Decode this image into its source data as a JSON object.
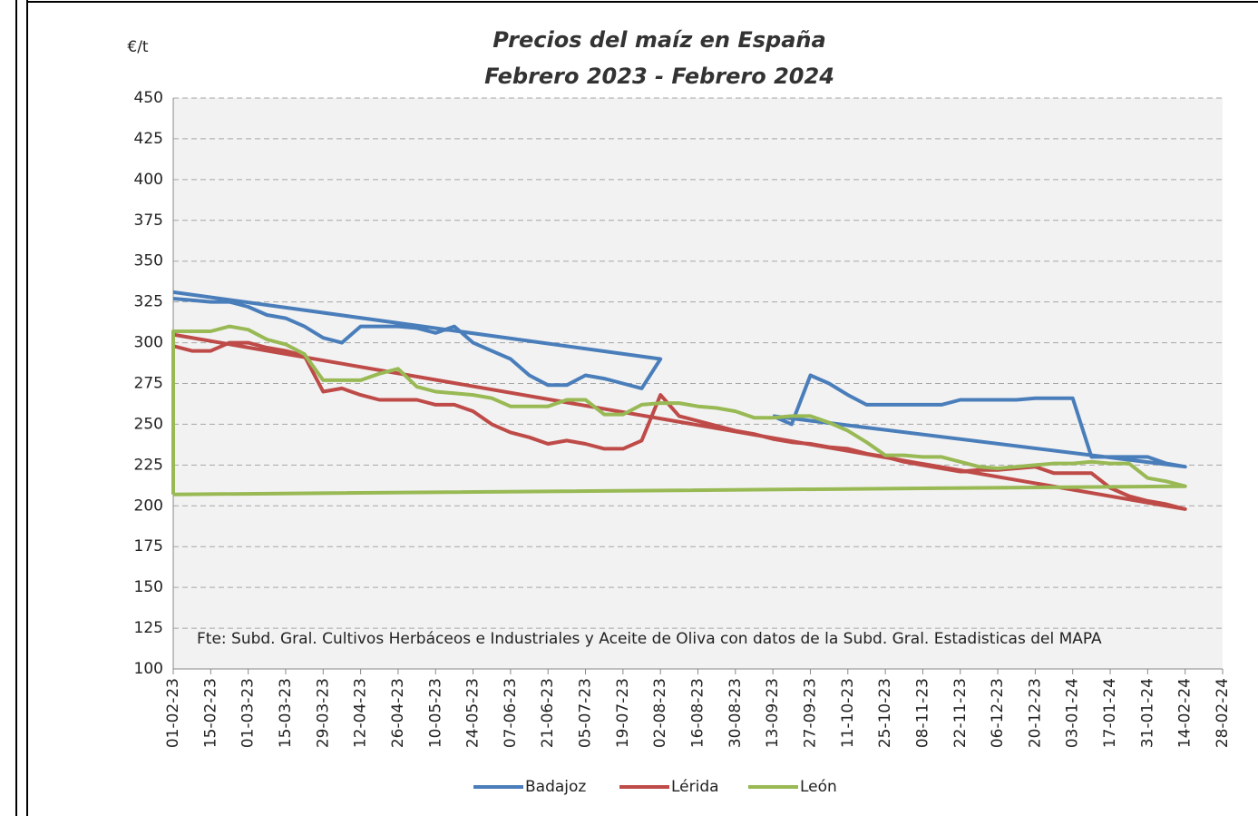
{
  "chart_data": {
    "type": "line",
    "title": "Precios del maíz en España",
    "subtitle": "Febrero 2023 - Febrero 2024",
    "ylabel": "€/t",
    "annotation": "Fte: Subd. Gral. Cultivos Herbáceos e Industriales y Aceite de Oliva con datos de la Subd. Gral. Estadisticas del MAPA",
    "xlim": [
      "01-02-23",
      "28-02-24"
    ],
    "xticks": [
      "01-02-23",
      "15-02-23",
      "01-03-23",
      "15-03-23",
      "29-03-23",
      "12-04-23",
      "26-04-23",
      "10-05-23",
      "24-05-23",
      "07-06-23",
      "21-06-23",
      "05-07-23",
      "19-07-23",
      "02-08-23",
      "16-08-23",
      "30-08-23",
      "13-09-23",
      "27-09-23",
      "11-10-23",
      "25-10-23",
      "08-11-23",
      "22-11-23",
      "06-12-23",
      "20-12-23",
      "03-01-24",
      "17-01-24",
      "31-01-24",
      "14-02-24",
      "28-02-24"
    ],
    "ylim": [
      100,
      450
    ],
    "yticks": [
      100,
      125,
      150,
      175,
      200,
      225,
      250,
      275,
      300,
      325,
      350,
      375,
      400,
      425,
      450
    ],
    "grid": true,
    "legend": "bottom",
    "series": [
      {
        "name": "Badajoz",
        "color": "#4a7ebb",
        "x": [
          "01-02-23",
          "08-02-23",
          "15-02-23",
          "22-02-23",
          "01-03-23",
          "08-03-23",
          "15-03-23",
          "22-03-23",
          "29-03-23",
          "05-04-23",
          "12-04-23",
          "19-04-23",
          "26-04-23",
          "03-05-23",
          "10-05-23",
          "17-05-23",
          "24-05-23",
          "31-05-23",
          "07-06-23",
          "14-06-23",
          "21-06-23",
          "28-06-23",
          "05-07-23",
          "12-07-23",
          "19-07-23",
          "26-07-23",
          "02-08-23",
          "01-02-23",
          null,
          "13-09-23",
          "20-09-23",
          "27-09-23",
          "04-10-23",
          "11-10-23",
          "18-10-23",
          "25-10-23",
          "01-11-23",
          "08-11-23",
          "15-11-23",
          "22-11-23",
          "29-11-23",
          "06-12-23",
          "13-12-23",
          "20-12-23",
          "27-12-23",
          "03-01-24",
          "10-01-24",
          "17-01-24",
          "24-01-24",
          "31-01-24",
          "07-02-24",
          "14-02-24",
          "13-09-23"
        ],
        "values": [
          327,
          326,
          325,
          325,
          322,
          317,
          315,
          310,
          303,
          300,
          310,
          310,
          310,
          309,
          306,
          310,
          300,
          295,
          290,
          280,
          274,
          274,
          280,
          278,
          275,
          272,
          290,
          331,
          null,
          255,
          250,
          280,
          275,
          268,
          262,
          262,
          262,
          262,
          262,
          265,
          265,
          265,
          265,
          266,
          266,
          266,
          230,
          230,
          230,
          230,
          226,
          224,
          255
        ]
      },
      {
        "name": "Lérida",
        "color": "#be4b48",
        "x": [
          "01-02-23",
          "08-02-23",
          "15-02-23",
          "22-02-23",
          "01-03-23",
          "08-03-23",
          "15-03-23",
          "22-03-23",
          "29-03-23",
          "05-04-23",
          "12-04-23",
          "19-04-23",
          "26-04-23",
          "03-05-23",
          "10-05-23",
          "17-05-23",
          "24-05-23",
          "31-05-23",
          "07-06-23",
          "14-06-23",
          "21-06-23",
          "28-06-23",
          "05-07-23",
          "12-07-23",
          "19-07-23",
          "26-07-23",
          "02-08-23",
          "09-08-23",
          "16-08-23",
          "23-08-23",
          "30-08-23",
          "06-09-23",
          "13-09-23",
          "20-09-23",
          "27-09-23",
          "04-10-23",
          "11-10-23",
          "18-10-23",
          "25-10-23",
          "01-11-23",
          "08-11-23",
          "15-11-23",
          "22-11-23",
          "29-11-23",
          "06-12-23",
          "13-12-23",
          "20-12-23",
          "27-12-23",
          "03-01-24",
          "10-01-24",
          "17-01-24",
          "24-01-24",
          "31-01-24",
          "07-02-24",
          "14-02-24",
          "01-02-23"
        ],
        "values": [
          298,
          295,
          295,
          300,
          300,
          297,
          295,
          292,
          270,
          272,
          268,
          265,
          265,
          265,
          262,
          262,
          258,
          250,
          245,
          242,
          238,
          240,
          238,
          235,
          235,
          240,
          268,
          255,
          252,
          249,
          246,
          244,
          241,
          239,
          238,
          236,
          235,
          232,
          230,
          227,
          225,
          223,
          221,
          222,
          222,
          223,
          224,
          220,
          220,
          220,
          211,
          206,
          203,
          201,
          198,
          305
        ]
      },
      {
        "name": "León",
        "color": "#98b954",
        "x": [
          "01-02-23",
          "01-02-23",
          "08-02-23",
          "15-02-23",
          "22-02-23",
          "01-03-23",
          "08-03-23",
          "15-03-23",
          "22-03-23",
          "29-03-23",
          "05-04-23",
          "12-04-23",
          "19-04-23",
          "26-04-23",
          "03-05-23",
          "10-05-23",
          "17-05-23",
          "24-05-23",
          "31-05-23",
          "07-06-23",
          "14-06-23",
          "21-06-23",
          "28-06-23",
          "05-07-23",
          "12-07-23",
          "19-07-23",
          "26-07-23",
          "02-08-23",
          "09-08-23",
          "16-08-23",
          "23-08-23",
          "30-08-23",
          "06-09-23",
          "13-09-23",
          "20-09-23",
          "27-09-23",
          "04-10-23",
          "11-10-23",
          "18-10-23",
          "25-10-23",
          "01-11-23",
          "08-11-23",
          "15-11-23",
          "22-11-23",
          "29-11-23",
          "06-12-23",
          "13-12-23",
          "20-12-23",
          "27-12-23",
          "03-01-24",
          "10-01-24",
          "17-01-24",
          "24-01-24",
          "31-01-24",
          "07-02-24",
          "14-02-24",
          "01-02-23"
        ],
        "values": [
          207,
          307,
          307,
          307,
          310,
          308,
          302,
          299,
          293,
          277,
          277,
          277,
          281,
          284,
          273,
          270,
          269,
          268,
          266,
          261,
          261,
          261,
          265,
          265,
          256,
          256,
          262,
          263,
          263,
          261,
          260,
          258,
          254,
          254,
          255,
          255,
          251,
          246,
          239,
          231,
          231,
          230,
          230,
          227,
          224,
          223,
          224,
          225,
          226,
          226,
          227,
          226,
          226,
          217,
          215,
          212,
          207
        ]
      }
    ]
  }
}
